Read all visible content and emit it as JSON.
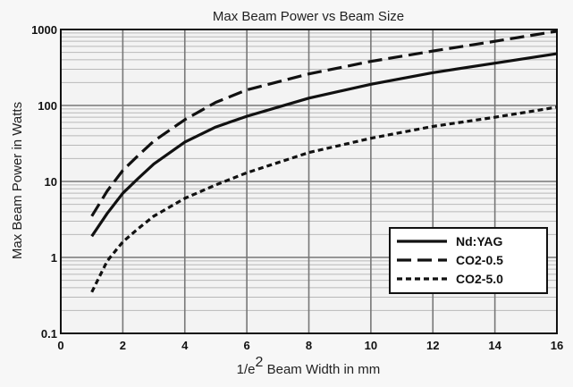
{
  "chart_data": {
    "type": "line",
    "title": "Max Beam Power vs Beam Size",
    "xlabel_prefix": "1/e",
    "xlabel_sup": "2",
    "xlabel_suffix": " Beam Width in mm",
    "ylabel": "Max Beam Power in Watts",
    "xlim": [
      0,
      16
    ],
    "ylim": [
      0.1,
      1000
    ],
    "yscale": "log",
    "grid": true,
    "legend_position": "bottom-right",
    "x_ticks": [
      "0",
      "2",
      "4",
      "6",
      "8",
      "10",
      "12",
      "14",
      "16"
    ],
    "y_ticks": [
      "0.1",
      "1",
      "10",
      "100",
      "1000"
    ],
    "series": [
      {
        "name": "Nd:YAG",
        "style": "solid",
        "x": [
          1,
          1.5,
          2,
          2.5,
          3,
          4,
          5,
          6,
          8,
          10,
          12,
          14,
          16
        ],
        "y": [
          1.9,
          3.8,
          7,
          11,
          17,
          33,
          52,
          72,
          125,
          190,
          270,
          360,
          480
        ]
      },
      {
        "name": "CO2-0.5",
        "style": "long-dash",
        "x": [
          1,
          1.5,
          2,
          2.5,
          3,
          4,
          5,
          6,
          8,
          10,
          12,
          14,
          16
        ],
        "y": [
          3.5,
          7.5,
          14,
          22,
          34,
          65,
          110,
          160,
          260,
          380,
          520,
          700,
          950
        ]
      },
      {
        "name": "CO2-5.0",
        "style": "short-dash",
        "x": [
          1,
          1.5,
          2,
          2.5,
          3,
          4,
          5,
          6,
          8,
          10,
          12,
          14,
          16
        ],
        "y": [
          0.35,
          0.9,
          1.6,
          2.4,
          3.5,
          6,
          9,
          13,
          24,
          37,
          53,
          70,
          95
        ]
      }
    ]
  }
}
